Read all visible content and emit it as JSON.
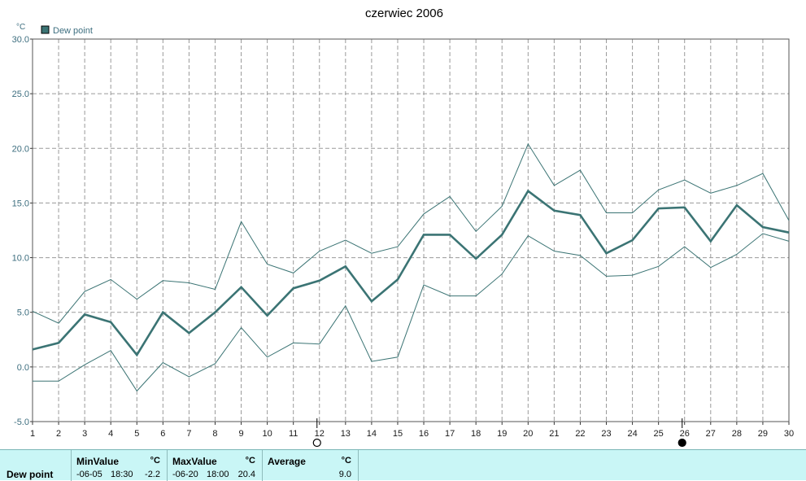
{
  "chart_data": {
    "type": "line",
    "title": "czerwiec 2006",
    "ylabel": "°C",
    "ylim": [
      -5,
      30
    ],
    "yticks": [
      "-5.0",
      "0.0",
      "5.0",
      "10.0",
      "15.0",
      "20.0",
      "25.0",
      "30.0"
    ],
    "xlim": [
      1,
      30
    ],
    "x": [
      1,
      2,
      3,
      4,
      5,
      6,
      7,
      8,
      9,
      10,
      11,
      12,
      13,
      14,
      15,
      16,
      17,
      18,
      19,
      20,
      21,
      22,
      23,
      24,
      25,
      26,
      27,
      28,
      29,
      30
    ],
    "grid": true,
    "legend": {
      "position": "top-left",
      "entries": [
        "Dew point"
      ]
    },
    "series": [
      {
        "name": "Dew point",
        "role": "average",
        "values": [
          1.6,
          2.2,
          4.8,
          4.1,
          1.1,
          5.0,
          3.1,
          5.0,
          7.3,
          4.7,
          7.2,
          7.9,
          9.2,
          6.0,
          8.0,
          12.1,
          12.1,
          9.9,
          12.1,
          16.1,
          14.3,
          13.9,
          10.4,
          11.6,
          14.5,
          14.6,
          11.5,
          14.8,
          12.8,
          12.3
        ],
        "color": "#3b7474"
      },
      {
        "role": "max",
        "values": [
          5.1,
          4.0,
          6.9,
          8.0,
          6.2,
          7.9,
          7.7,
          7.1,
          13.3,
          9.4,
          8.6,
          10.6,
          11.6,
          10.4,
          11.0,
          14.0,
          15.6,
          12.4,
          14.7,
          20.4,
          16.6,
          18.0,
          14.1,
          14.1,
          16.2,
          17.1,
          15.9,
          16.6,
          17.7,
          13.4
        ],
        "color": "#3b7474"
      },
      {
        "role": "min",
        "values": [
          -1.3,
          -1.3,
          0.2,
          1.5,
          -2.2,
          0.4,
          -0.9,
          0.3,
          3.6,
          0.9,
          2.2,
          2.1,
          5.6,
          0.5,
          0.9,
          7.5,
          6.5,
          6.5,
          8.5,
          12.0,
          10.6,
          10.2,
          8.3,
          8.4,
          9.2,
          11.0,
          9.1,
          10.3,
          12.2,
          11.5
        ],
        "color": "#3b7474"
      }
    ],
    "moon_phases": [
      {
        "day": 12,
        "phase": "full-moon-icon"
      },
      {
        "day": 26,
        "phase": "new-moon-icon"
      }
    ]
  },
  "summary": {
    "row_label": "Dew point",
    "min": {
      "header": "MinValue",
      "unit": "°C",
      "date": "-06-05",
      "time": "18:30",
      "value": "-2.2"
    },
    "max": {
      "header": "MaxValue",
      "unit": "°C",
      "date": "-06-20",
      "time": "18:00",
      "value": "20.4"
    },
    "avg": {
      "header": "Average",
      "unit": "°C",
      "value": "9.0"
    }
  }
}
